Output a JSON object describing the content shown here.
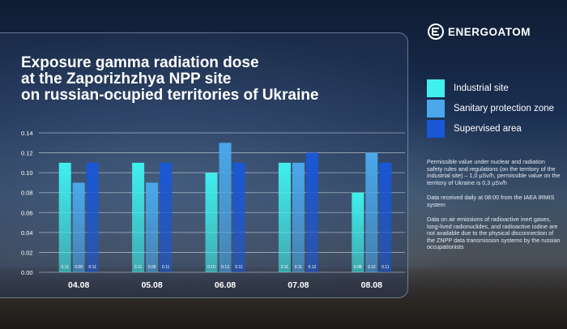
{
  "title": "Exposure gamma radiation dose\nat the Zaporizhzhya NPP site\non russian-ocupied territories of Ukraine",
  "logo": {
    "text": "ENERGOATOM",
    "icon": "energoatom-logo-icon"
  },
  "colors": {
    "industrial": "#3ff0ec",
    "sanitary": "#4aa8ea",
    "supervised": "#1a57d6"
  },
  "legend": [
    {
      "label": "Industrial site",
      "color": "#3ff0ec"
    },
    {
      "label": "Sanitary protection zone",
      "color": "#4aa8ea"
    },
    {
      "label": "Supervised area",
      "color": "#1a57d6"
    }
  ],
  "notes": [
    "Permissible value under nuclear and radiation\nsafety rules and regulations (on the territory of the\nindustrial site) – 1,0 µSv/h, permissible value on the\nterritory of Ukraine is 0,3 µSv/h",
    "Data received daily at 08:00 from the IAEA IRMIS\nsystem",
    "Data on air emissions of radioactive inert gases,\nlong-lived radionuclides, and radioactive iodine are\nnot available due to the physical disconnection of\nthe ZNPP data transmission systems by the russian\noccupationists"
  ],
  "chart_data": {
    "type": "bar",
    "categories": [
      "04.08",
      "05.08",
      "06.08",
      "07.08",
      "08.08"
    ],
    "series": [
      {
        "name": "Industrial site",
        "values": [
          0.11,
          0.11,
          0.1,
          0.11,
          0.08
        ],
        "labels": [
          "0.11",
          "0.11",
          "0.10",
          "0.11",
          "0.08"
        ]
      },
      {
        "name": "Sanitary protection zone",
        "values": [
          0.09,
          0.09,
          0.13,
          0.11,
          0.12
        ],
        "labels": [
          "0.09",
          "0.09",
          "0.13",
          "0.11",
          "0.12"
        ]
      },
      {
        "name": "Supervised area",
        "values": [
          0.11,
          0.11,
          0.11,
          0.12,
          0.11
        ],
        "labels": [
          "0.11",
          "0.11",
          "0.11",
          "0.12",
          "0.11"
        ]
      }
    ],
    "ylim": [
      0,
      0.14
    ],
    "yticks": [
      "0.00",
      "0.02",
      "0.04",
      "0.06",
      "0.08",
      "0.10",
      "0.12",
      "0.14"
    ],
    "grid": true,
    "legend_position": "right"
  }
}
